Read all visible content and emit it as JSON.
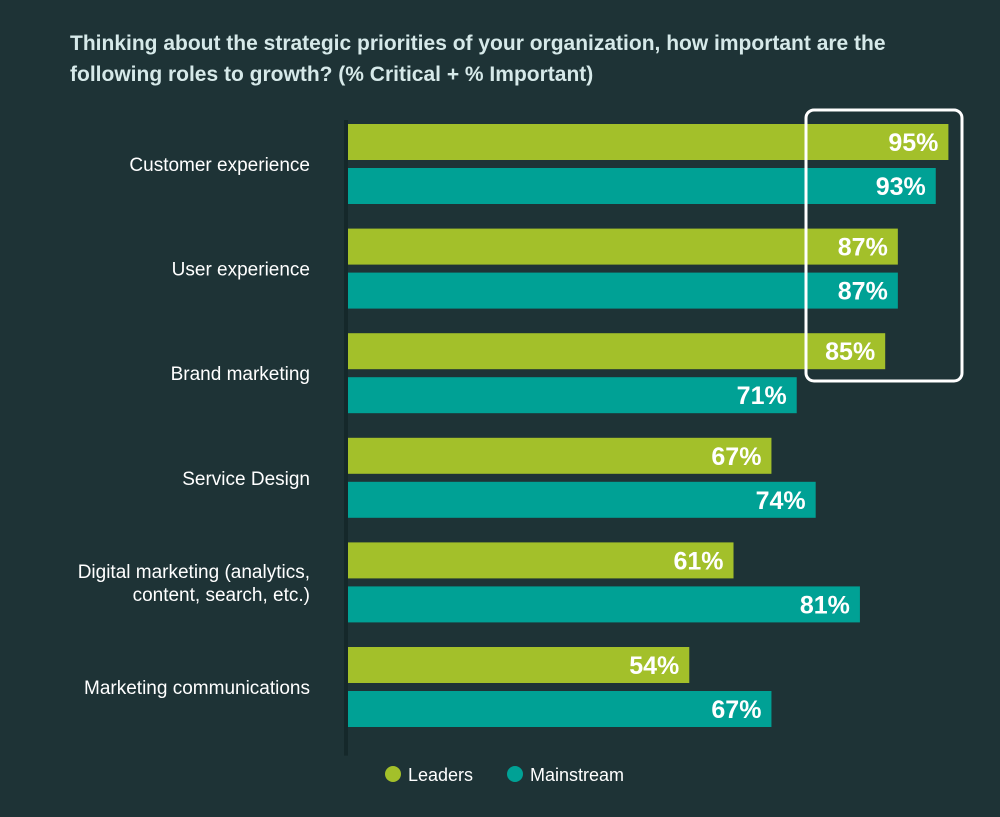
{
  "chart_data": {
    "type": "bar",
    "orientation": "horizontal",
    "title": "Thinking about the strategic priorities of your organization, how important are the following roles to growth? (% Critical + % Important)",
    "categories": [
      [
        "Customer experience"
      ],
      [
        "User experience"
      ],
      [
        "Brand marketing"
      ],
      [
        "Service Design"
      ],
      [
        "Digital marketing (analytics,",
        "content, search, etc.)"
      ],
      [
        "Marketing communications"
      ]
    ],
    "series": [
      {
        "name": "Leaders",
        "color": "#a3c02a",
        "values": [
          95,
          87,
          85,
          67,
          61,
          54
        ]
      },
      {
        "name": "Mainstream",
        "color": "#00a195",
        "values": [
          93,
          87,
          71,
          74,
          81,
          67
        ]
      }
    ],
    "value_suffix": "%",
    "xlim": [
      0,
      100
    ],
    "grid": false,
    "legend_position": "bottom",
    "highlight": "outlined box around the 95%, 93%, 87%, 87% and 85% values"
  }
}
